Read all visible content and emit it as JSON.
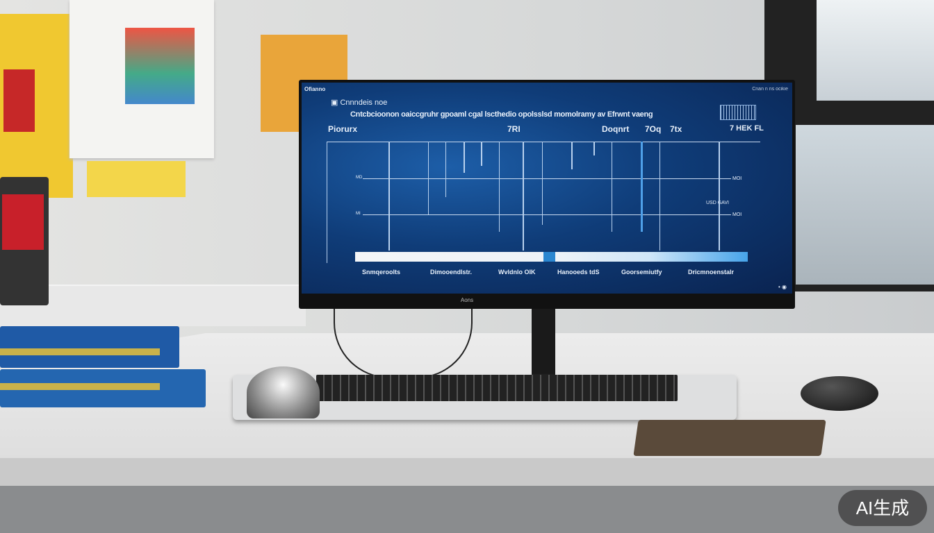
{
  "screen": {
    "app_title": "Ofianno",
    "top_right": "Cnan n ns ocikie",
    "heading": "Cnnndeis noe",
    "subtitle": "Cntcbcioonon oaiccgruhr gpoaml cgal lscthedio opolsslsd momolramy av Efrwnt vaeng",
    "row_label_left": "Piorurx",
    "mid_value": "7RI",
    "right_label": "Doqnrt",
    "right_value1": "7Oq",
    "right_value2": "7tx",
    "far_right_value": "7 HEK FL",
    "axis_tick_1": "MD",
    "axis_tick_2": "MI",
    "axis_right_1": "MOI",
    "axis_right_2": "MOI",
    "annotation": "USD GAVI",
    "bottom_labels": [
      "Snmqeroolts",
      "Dimooendlstr.",
      "Wvldnlo OIK",
      "Hanooeds tdS",
      "Goorsemiutfy",
      "Dricmnoenstalr"
    ],
    "progress_fraction": 0.49
  },
  "monitor_logo": "Aons",
  "watermark": "AI生成"
}
